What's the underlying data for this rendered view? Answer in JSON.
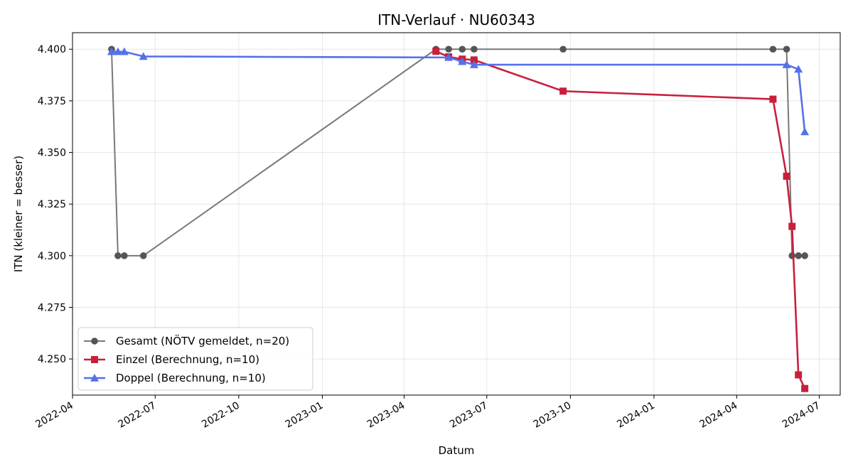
{
  "chart_data": {
    "type": "line",
    "title": "ITN-Verlauf · NU60343",
    "xlabel": "Datum",
    "ylabel": "ITN  (kleiner = besser)",
    "xlim": [
      "2022-04-01",
      "2024-07-24"
    ],
    "ylim": [
      4.2325,
      4.408
    ],
    "x_ticks": [
      "2022-04",
      "2022-07",
      "2022-10",
      "2023-01",
      "2023-04",
      "2023-07",
      "2023-10",
      "2024-01",
      "2024-04",
      "2024-07"
    ],
    "x_tick_dates": [
      "2022-04-01",
      "2022-07-01",
      "2022-10-01",
      "2023-01-01",
      "2023-04-01",
      "2023-07-01",
      "2023-10-01",
      "2024-01-01",
      "2024-04-01",
      "2024-07-01"
    ],
    "y_ticks": [
      "4.250",
      "4.275",
      "4.300",
      "4.325",
      "4.350",
      "4.375",
      "4.400"
    ],
    "y_tick_values": [
      4.25,
      4.275,
      4.3,
      4.325,
      4.35,
      4.375,
      4.4
    ],
    "grid": true,
    "legend_position": "lower-left",
    "series": [
      {
        "name": "Gesamt (NÖTV gemeldet, n=20)",
        "color": "#787878",
        "marker": "circle",
        "points": [
          [
            "2022-05-14",
            4.4
          ],
          [
            "2022-05-21",
            4.3
          ],
          [
            "2022-05-28",
            4.3
          ],
          [
            "2022-06-18",
            4.3
          ],
          [
            "2023-05-06",
            4.4
          ],
          [
            "2023-05-20",
            4.4
          ],
          [
            "2023-06-04",
            4.4
          ],
          [
            "2023-06-17",
            4.4
          ],
          [
            "2023-09-23",
            4.4
          ],
          [
            "2024-05-11",
            4.4
          ],
          [
            "2024-05-26",
            4.4
          ],
          [
            "2024-06-01",
            4.3
          ],
          [
            "2024-06-08",
            4.3
          ],
          [
            "2024-06-15",
            4.3
          ]
        ]
      },
      {
        "name": "Einzel (Berechnung, n=10)",
        "color": "#c8203c",
        "marker": "square",
        "points": [
          [
            "2023-05-06",
            4.399
          ],
          [
            "2023-05-20",
            4.3963
          ],
          [
            "2023-06-04",
            4.3952
          ],
          [
            "2023-06-17",
            4.3948
          ],
          [
            "2023-09-23",
            4.3797
          ],
          [
            "2024-05-11",
            4.3758
          ],
          [
            "2024-05-26",
            4.3385
          ],
          [
            "2024-06-01",
            4.3142
          ],
          [
            "2024-06-08",
            4.2423
          ],
          [
            "2024-06-15",
            4.2357
          ]
        ]
      },
      {
        "name": "Doppel (Berechnung, n=10)",
        "color": "#5571e8",
        "marker": "triangle",
        "points": [
          [
            "2022-05-14",
            4.3988
          ],
          [
            "2022-05-21",
            4.3988
          ],
          [
            "2022-05-28",
            4.3988
          ],
          [
            "2022-06-18",
            4.3965
          ],
          [
            "2023-05-20",
            4.396
          ],
          [
            "2023-06-04",
            4.394
          ],
          [
            "2023-06-17",
            4.3925
          ],
          [
            "2024-05-26",
            4.3925
          ],
          [
            "2024-06-08",
            4.3903
          ],
          [
            "2024-06-15",
            4.36
          ]
        ]
      }
    ]
  }
}
